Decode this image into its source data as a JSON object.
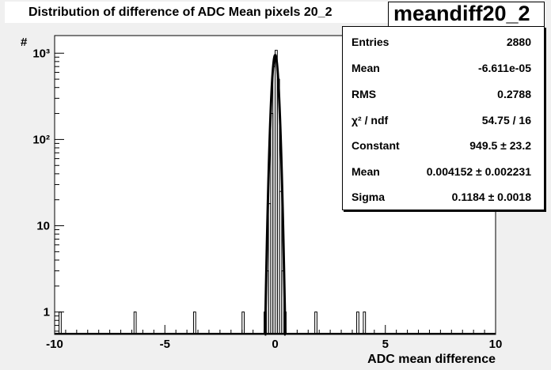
{
  "title": "Distribution of difference of ADC Mean   pixels 20_2",
  "hist_name": "meandiff20_2",
  "stats": [
    {
      "label": "Entries",
      "value": "2880"
    },
    {
      "label": "Mean",
      "value": "-6.611e-05"
    },
    {
      "label": "RMS",
      "value": "0.2788"
    },
    {
      "label": "χ² / ndf",
      "value": "54.75 / 16"
    },
    {
      "label": "Constant",
      "value": "949.5 ± 23.2"
    },
    {
      "label": "Mean",
      "value": "0.004152 ± 0.002231"
    },
    {
      "label": "Sigma",
      "value": "0.1184 ± 0.0018"
    }
  ],
  "chart_data": {
    "type": "bar",
    "title": "Distribution of difference of ADC Mean   pixels 20_2",
    "xlabel": "ADC mean difference",
    "ylabel": "#",
    "xlim": [
      -10,
      10
    ],
    "ylim": [
      0.55,
      1600
    ],
    "yscale": "log",
    "x_ticks": [
      -10,
      -5,
      0,
      5,
      10
    ],
    "y_ticks": [
      {
        "value": 1,
        "label": "1"
      },
      {
        "value": 10,
        "label": "10"
      },
      {
        "value": 100,
        "label": "10²"
      },
      {
        "value": 1000,
        "label": "10³"
      }
    ],
    "histogram": {
      "bin_width": 0.1,
      "bins": [
        {
          "x": -9.75,
          "count": 1
        },
        {
          "x": -6.35,
          "count": 1
        },
        {
          "x": -3.65,
          "count": 1
        },
        {
          "x": -1.45,
          "count": 1
        },
        {
          "x": -0.45,
          "count": 1
        },
        {
          "x": -0.35,
          "count": 3
        },
        {
          "x": -0.25,
          "count": 18
        },
        {
          "x": -0.15,
          "count": 200
        },
        {
          "x": -0.05,
          "count": 700
        },
        {
          "x": 0.05,
          "count": 1080
        },
        {
          "x": 0.15,
          "count": 500
        },
        {
          "x": 0.25,
          "count": 25
        },
        {
          "x": 0.35,
          "count": 3
        },
        {
          "x": 0.45,
          "count": 1
        },
        {
          "x": 1.85,
          "count": 1
        },
        {
          "x": 3.75,
          "count": 1
        },
        {
          "x": 4.05,
          "count": 1
        }
      ]
    },
    "fit": {
      "function": "gaus",
      "constant": 949.5,
      "mean": 0.004152,
      "sigma": 0.1184
    },
    "grid": false,
    "legend": "top-right"
  }
}
